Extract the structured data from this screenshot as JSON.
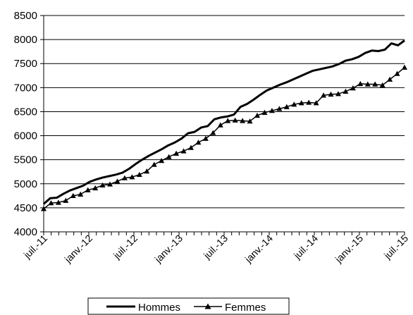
{
  "chart_data": {
    "type": "line",
    "title": "",
    "xlabel": "",
    "ylabel": "",
    "ylim": [
      4000,
      8500
    ],
    "y_ticks": [
      4000,
      4500,
      5000,
      5500,
      6000,
      6500,
      7000,
      7500,
      8000,
      8500
    ],
    "x_start": "2011-07",
    "x_tick_labels": [
      "juil.-11",
      "janv.-12",
      "juil.-12",
      "janv.-13",
      "juil.-13",
      "janv.-14",
      "juil.-14",
      "janv.-15",
      "juil.-15"
    ],
    "grid": "horizontal",
    "legend_position": "bottom",
    "series": [
      {
        "name": "Hommes",
        "color": "#000000",
        "marker": "none",
        "values": [
          4580,
          4700,
          4710,
          4790,
          4860,
          4910,
          4960,
          5040,
          5090,
          5130,
          5160,
          5190,
          5230,
          5310,
          5410,
          5500,
          5580,
          5650,
          5720,
          5800,
          5860,
          5940,
          6050,
          6080,
          6170,
          6200,
          6340,
          6380,
          6400,
          6440,
          6600,
          6660,
          6750,
          6850,
          6940,
          7000,
          7060,
          7110,
          7170,
          7230,
          7290,
          7350,
          7380,
          7410,
          7440,
          7490,
          7560,
          7590,
          7640,
          7720,
          7770,
          7760,
          7790,
          7920,
          7880,
          7980
        ]
      },
      {
        "name": "Femmes",
        "color": "#000000",
        "marker": "triangle",
        "values": [
          4480,
          4600,
          4610,
          4650,
          4750,
          4780,
          4870,
          4910,
          4970,
          4990,
          5050,
          5120,
          5140,
          5190,
          5260,
          5400,
          5480,
          5560,
          5630,
          5680,
          5750,
          5860,
          5940,
          6060,
          6220,
          6310,
          6320,
          6310,
          6300,
          6420,
          6480,
          6520,
          6560,
          6600,
          6650,
          6680,
          6690,
          6680,
          6840,
          6860,
          6870,
          6920,
          6990,
          7080,
          7070,
          7070,
          7050,
          7170,
          7290,
          7420
        ]
      }
    ]
  }
}
